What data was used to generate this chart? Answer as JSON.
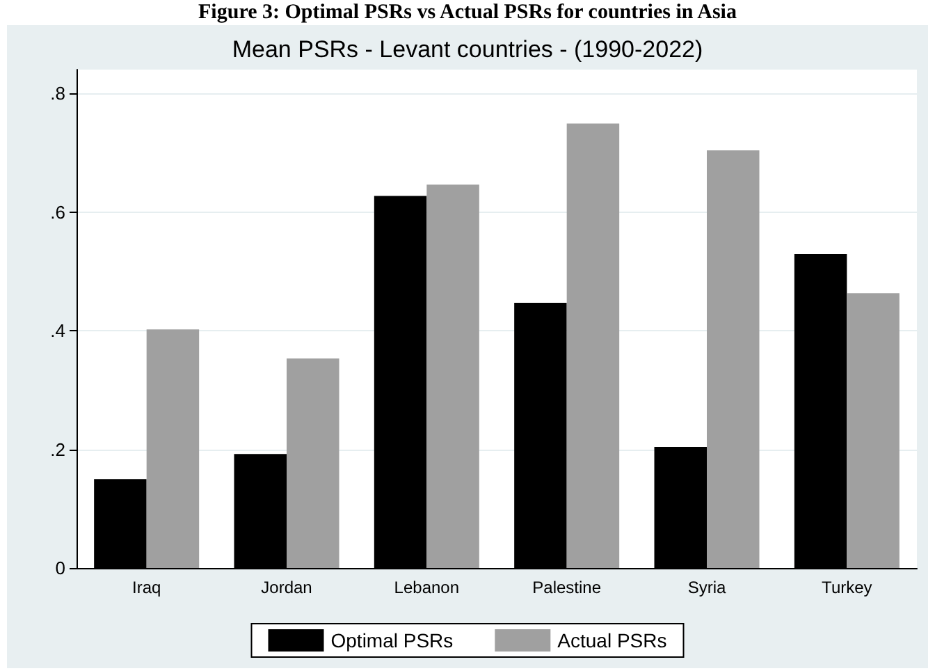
{
  "chart_data": {
    "type": "bar",
    "title": "Mean PSRs - Levant countries - (1990-2022)",
    "annotations": [
      "Figure 3: Optimal PSRs vs Actual PSRs for countries in Asia"
    ],
    "categories": [
      "Iraq",
      "Jordan",
      "Lebanon",
      "Palestine",
      "Syria",
      "Turkey"
    ],
    "series": [
      {
        "name": "Optimal PSRs",
        "color": "#000000",
        "values": [
          0.15,
          0.192,
          0.627,
          0.447,
          0.204,
          0.529
        ]
      },
      {
        "name": "Actual PSRs",
        "color": "#a0a0a0",
        "values": [
          0.402,
          0.353,
          0.646,
          0.749,
          0.704,
          0.463
        ]
      }
    ],
    "ylim": [
      0,
      0.84
    ],
    "yticks": [
      {
        "value": 0,
        "label": "0"
      },
      {
        "value": 0.2,
        "label": ".2"
      },
      {
        "value": 0.4,
        "label": ".4"
      },
      {
        "value": 0.6,
        "label": ".6"
      },
      {
        "value": 0.8,
        "label": ".8"
      }
    ],
    "grid": "y",
    "legend": "bottom"
  }
}
